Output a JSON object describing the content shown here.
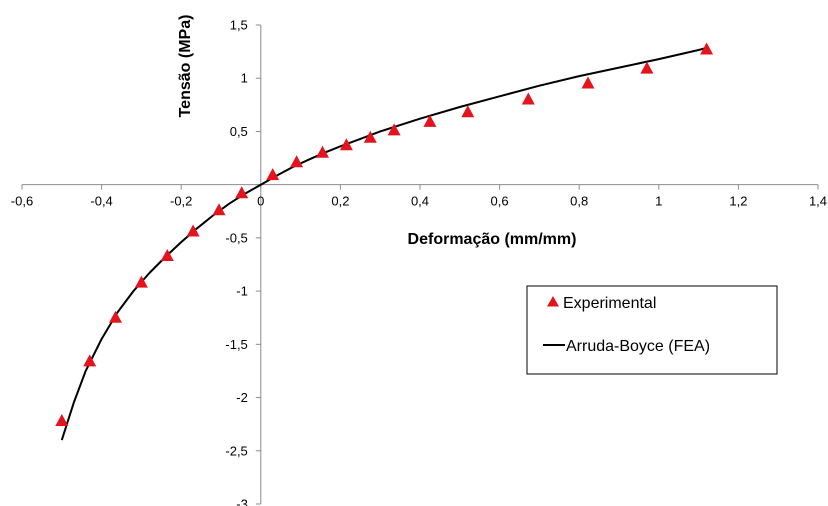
{
  "chart_data": {
    "type": "scatter",
    "xlabel": "Deformação (mm/mm)",
    "ylabel": "Tensão (MPa)",
    "xlim": [
      -0.6,
      1.4
    ],
    "ylim": [
      -3,
      1.5
    ],
    "xticks": [
      -0.6,
      -0.4,
      -0.2,
      0,
      0.2,
      0.4,
      0.6,
      0.8,
      1,
      1.2,
      1.4
    ],
    "xtick_labels": [
      "-0,6",
      "-0,4",
      "-0,2",
      "0",
      "0,2",
      "0,4",
      "0,6",
      "0,8",
      "1",
      "1,2",
      "1,4"
    ],
    "yticks": [
      1.5,
      1,
      0.5,
      0,
      -0.5,
      -1,
      -1.5,
      -2,
      -2.5,
      -3
    ],
    "ytick_labels": [
      "1,5",
      "1",
      "0,5",
      "0",
      "-0,5",
      "-1",
      "-1,5",
      "-2",
      "-2,5",
      "-3"
    ],
    "legend_position": "right-middle",
    "series": [
      {
        "name": "Experimental",
        "kind": "marker",
        "marker": "triangle",
        "color": "#e3141e",
        "x": [
          -0.5,
          -0.43,
          -0.365,
          -0.3,
          -0.235,
          -0.17,
          -0.105,
          -0.048,
          0.03,
          0.09,
          0.155,
          0.215,
          0.275,
          0.335,
          0.425,
          0.52,
          0.672,
          0.822,
          0.97,
          1.12
        ],
        "y": [
          -2.22,
          -1.66,
          -1.25,
          -0.92,
          -0.67,
          -0.44,
          -0.24,
          -0.08,
          0.09,
          0.21,
          0.3,
          0.37,
          0.44,
          0.51,
          0.59,
          0.68,
          0.8,
          0.95,
          1.09,
          1.27
        ]
      },
      {
        "name": "Arruda-Boyce (FEA)",
        "kind": "line",
        "color": "#000000",
        "x": [
          -0.5,
          -0.47,
          -0.44,
          -0.4,
          -0.36,
          -0.32,
          -0.28,
          -0.24,
          -0.2,
          -0.16,
          -0.12,
          -0.08,
          -0.04,
          0,
          0.04,
          0.08,
          0.12,
          0.16,
          0.2,
          0.25,
          0.3,
          0.35,
          0.4,
          0.5,
          0.6,
          0.7,
          0.8,
          0.9,
          1.0,
          1.1,
          1.12
        ],
        "y": [
          -2.4,
          -2.05,
          -1.75,
          -1.45,
          -1.2,
          -1.0,
          -0.83,
          -0.68,
          -0.54,
          -0.41,
          -0.29,
          -0.18,
          -0.085,
          0,
          0.085,
          0.165,
          0.235,
          0.3,
          0.36,
          0.43,
          0.5,
          0.56,
          0.62,
          0.73,
          0.83,
          0.93,
          1.02,
          1.1,
          1.18,
          1.265,
          1.285
        ]
      }
    ]
  }
}
